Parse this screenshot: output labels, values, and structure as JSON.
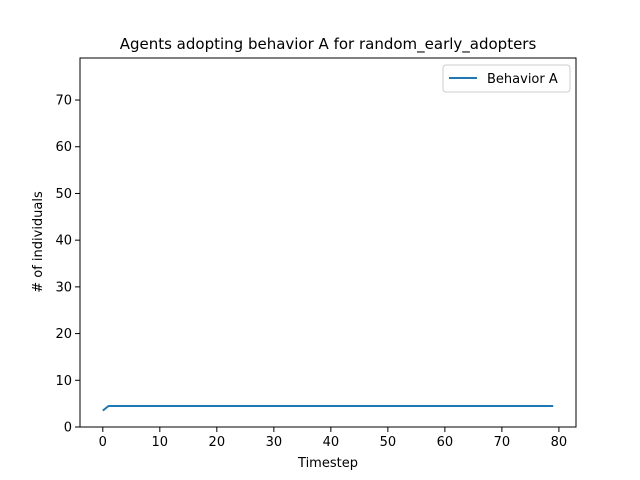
{
  "chart_data": {
    "type": "line",
    "title": "Agents adopting behavior A for random_early_adopters",
    "xlabel": "Timestep",
    "ylabel": "# of individuals",
    "xlim": [
      -4,
      83
    ],
    "ylim": [
      0,
      79
    ],
    "xticks": [
      0,
      10,
      20,
      30,
      40,
      50,
      60,
      70,
      80
    ],
    "yticks": [
      0,
      10,
      20,
      30,
      40,
      50,
      60,
      70
    ],
    "grid": false,
    "legend": {
      "placement": "top-right",
      "entries": [
        "Behavior A"
      ]
    },
    "series": [
      {
        "name": "Behavior A",
        "color": "#1f77b4",
        "x": [
          0,
          1,
          79
        ],
        "y": [
          3.5,
          4.5,
          4.5
        ]
      }
    ]
  }
}
